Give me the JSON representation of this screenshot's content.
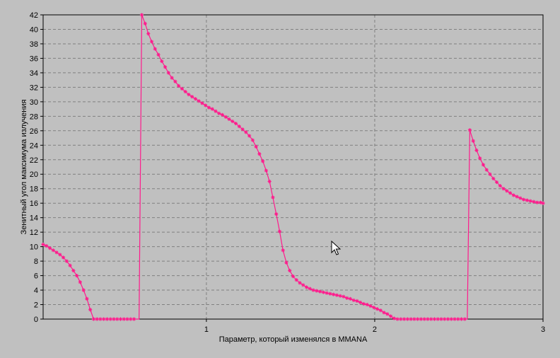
{
  "colors": {
    "background": "#c0c0c0",
    "plot_background": "#c0c0c0",
    "grid": "#808080",
    "series": "#ff1a8c",
    "axis": "#000000"
  },
  "cursor": {
    "icon": "mouse-pointer-icon"
  },
  "chart_data": {
    "type": "line",
    "xlabel": "Параметр, который изменялся в MMANA",
    "ylabel": "Зенитный угол максимума излучения",
    "xlim": [
      0.03,
      3.0
    ],
    "ylim": [
      0,
      42
    ],
    "xticks": [
      1,
      2,
      3
    ],
    "yticks": [
      0,
      2,
      4,
      6,
      8,
      10,
      12,
      14,
      16,
      18,
      20,
      22,
      24,
      26,
      28,
      30,
      32,
      34,
      36,
      38,
      40,
      42
    ],
    "grid": true,
    "legend": "none",
    "series": [
      {
        "marker": "asterisk",
        "x": [
          0.03,
          0.05,
          0.07,
          0.09,
          0.11,
          0.13,
          0.15,
          0.17,
          0.19,
          0.21,
          0.23,
          0.25,
          0.27,
          0.29,
          0.31,
          0.33,
          0.35,
          0.37,
          0.39,
          0.41,
          0.43,
          0.45,
          0.47,
          0.49,
          0.51,
          0.53,
          0.55,
          0.57,
          0.587,
          0.6,
          0.616,
          0.636,
          0.655,
          0.675,
          0.695,
          0.715,
          0.735,
          0.755,
          0.775,
          0.795,
          0.815,
          0.835,
          0.855,
          0.875,
          0.895,
          0.915,
          0.935,
          0.955,
          0.975,
          0.995,
          1.015,
          1.035,
          1.055,
          1.075,
          1.095,
          1.115,
          1.135,
          1.155,
          1.175,
          1.195,
          1.215,
          1.235,
          1.255,
          1.275,
          1.295,
          1.315,
          1.335,
          1.355,
          1.375,
          1.395,
          1.415,
          1.435,
          1.455,
          1.475,
          1.495,
          1.515,
          1.535,
          1.555,
          1.575,
          1.595,
          1.615,
          1.635,
          1.655,
          1.675,
          1.695,
          1.715,
          1.735,
          1.755,
          1.775,
          1.795,
          1.815,
          1.835,
          1.855,
          1.875,
          1.895,
          1.915,
          1.935,
          1.955,
          1.975,
          1.995,
          2.015,
          2.035,
          2.055,
          2.075,
          2.095,
          2.115,
          2.135,
          2.155,
          2.175,
          2.195,
          2.215,
          2.235,
          2.255,
          2.275,
          2.295,
          2.315,
          2.335,
          2.355,
          2.375,
          2.395,
          2.415,
          2.435,
          2.455,
          2.475,
          2.495,
          2.515,
          2.535,
          2.55,
          2.565,
          2.585,
          2.605,
          2.625,
          2.645,
          2.665,
          2.685,
          2.705,
          2.725,
          2.745,
          2.765,
          2.785,
          2.805,
          2.825,
          2.845,
          2.865,
          2.885,
          2.905,
          2.925,
          2.945,
          2.965,
          2.985,
          3.0
        ],
        "y": [
          10.3,
          10.1,
          9.8,
          9.5,
          9.2,
          8.9,
          8.5,
          8.0,
          7.4,
          6.7,
          6.0,
          5.1,
          4.0,
          2.8,
          1.3,
          0.0,
          0.0,
          0.0,
          0.0,
          0.0,
          0.0,
          0.0,
          0.0,
          0.0,
          0.0,
          0.0,
          0.0,
          0.0,
          0.0,
          0.0,
          42.0,
          40.8,
          39.4,
          38.3,
          37.3,
          36.5,
          35.6,
          34.8,
          34.0,
          33.3,
          32.8,
          32.2,
          31.8,
          31.4,
          31.0,
          30.7,
          30.4,
          30.1,
          29.8,
          29.5,
          29.2,
          29.0,
          28.7,
          28.4,
          28.2,
          27.9,
          27.6,
          27.3,
          27.0,
          26.6,
          26.2,
          25.8,
          25.3,
          24.7,
          23.8,
          22.8,
          21.8,
          20.5,
          19.0,
          16.8,
          14.5,
          12.1,
          9.5,
          7.8,
          6.7,
          5.9,
          5.4,
          5.0,
          4.7,
          4.4,
          4.2,
          4.0,
          3.9,
          3.8,
          3.7,
          3.6,
          3.5,
          3.4,
          3.3,
          3.2,
          3.1,
          2.9,
          2.8,
          2.6,
          2.5,
          2.3,
          2.1,
          2.0,
          1.8,
          1.6,
          1.4,
          1.2,
          0.9,
          0.7,
          0.4,
          0.1,
          0.0,
          0.0,
          0.0,
          0.0,
          0.0,
          0.0,
          0.0,
          0.0,
          0.0,
          0.0,
          0.0,
          0.0,
          0.0,
          0.0,
          0.0,
          0.0,
          0.0,
          0.0,
          0.0,
          0.0,
          0.0,
          0.0,
          26.1,
          24.6,
          23.3,
          22.2,
          21.3,
          20.6,
          20.0,
          19.4,
          18.9,
          18.4,
          18.0,
          17.7,
          17.4,
          17.1,
          16.9,
          16.7,
          16.5,
          16.4,
          16.3,
          16.2,
          16.1,
          16.1,
          16.0
        ],
        "markers_at": [
          0.03,
          0.05,
          0.07,
          0.09,
          0.11,
          0.13,
          0.15,
          0.17,
          0.19,
          0.21,
          0.23,
          0.25,
          0.27,
          0.29,
          0.31,
          0.33,
          0.35,
          0.37,
          0.39,
          0.41,
          0.43,
          0.45,
          0.47,
          0.49,
          0.51,
          0.53,
          0.55,
          0.57,
          0.616,
          0.636,
          0.655,
          0.675,
          0.695,
          0.715,
          0.735,
          0.755,
          0.775,
          0.795,
          0.815,
          0.835,
          0.855,
          0.875,
          0.895,
          0.915,
          0.935,
          0.955,
          0.975,
          0.995,
          1.015,
          1.035,
          1.055,
          1.075,
          1.095,
          1.115,
          1.135,
          1.155,
          1.175,
          1.195,
          1.215,
          1.235,
          1.255,
          1.275,
          1.295,
          1.315,
          1.335,
          1.355,
          1.375,
          1.395,
          1.415,
          1.435,
          1.455,
          1.475,
          1.495,
          1.515,
          1.535,
          1.555,
          1.575,
          1.595,
          1.615,
          1.635,
          1.655,
          1.675,
          1.695,
          1.715,
          1.735,
          1.755,
          1.775,
          1.795,
          1.815,
          1.835,
          1.855,
          1.875,
          1.895,
          1.915,
          1.935,
          1.955,
          1.975,
          1.995,
          2.015,
          2.035,
          2.055,
          2.075,
          2.095,
          2.115,
          2.135,
          2.155,
          2.175,
          2.195,
          2.215,
          2.235,
          2.255,
          2.275,
          2.295,
          2.315,
          2.335,
          2.355,
          2.375,
          2.395,
          2.415,
          2.435,
          2.455,
          2.475,
          2.495,
          2.515,
          2.535,
          2.565,
          2.585,
          2.605,
          2.625,
          2.645,
          2.665,
          2.685,
          2.705,
          2.725,
          2.745,
          2.765,
          2.785,
          2.805,
          2.825,
          2.845,
          2.865,
          2.885,
          2.905,
          2.925,
          2.945,
          2.965,
          2.985,
          3.0
        ]
      }
    ]
  }
}
